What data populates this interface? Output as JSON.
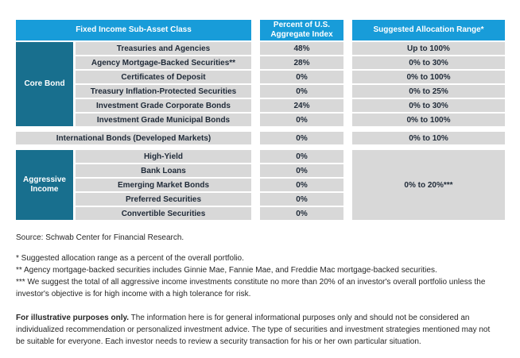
{
  "table": {
    "headers": {
      "col1": "Fixed Income Sub-Asset Class",
      "col2_line1": "Percent of U.S.",
      "col2_line2": "Aggregate Index",
      "col3": "Suggested Allocation Range*"
    },
    "sections": [
      {
        "stub": "Core Bond",
        "rows": [
          {
            "label": "Treasuries and Agencies",
            "percent": "48%",
            "range": "Up to 100%"
          },
          {
            "label": "Agency Mortgage-Backed Securities**",
            "percent": "28%",
            "range": "0% to 30%"
          },
          {
            "label": "Certificates of Deposit",
            "percent": "0%",
            "range": "0% to 100%"
          },
          {
            "label": "Treasury Inflation-Protected Securities",
            "percent": "0%",
            "range": "0% to 25%"
          },
          {
            "label": "Investment Grade Corporate Bonds",
            "percent": "24%",
            "range": "0% to 30%"
          },
          {
            "label": "Investment Grade Municipal Bonds",
            "percent": "0%",
            "range": "0% to 100%"
          }
        ]
      },
      {
        "rows": [
          {
            "label": "International Bonds (Developed Markets)",
            "percent": "0%",
            "range": "0% to 10%"
          }
        ]
      },
      {
        "stub": "Aggressive Income",
        "merged_range": "0% to 20%***",
        "rows": [
          {
            "label": "High-Yield",
            "percent": "0%"
          },
          {
            "label": "Bank Loans",
            "percent": "0%"
          },
          {
            "label": "Emerging Market Bonds",
            "percent": "0%"
          },
          {
            "label": "Preferred Securities",
            "percent": "0%"
          },
          {
            "label": "Convertible Securities",
            "percent": "0%"
          }
        ]
      }
    ]
  },
  "footnotes": {
    "source": "Source: Schwab Center for Financial Research.",
    "note1": "* Suggested allocation range as a percent of the overall portfolio.",
    "note2": "** Agency mortgage-backed securities includes Ginnie Mae, Fannie Mae, and Freddie Mac mortgage-backed securities.",
    "note3": "*** We suggest the total of all aggressive income investments constitute no more than 20% of an investor's overall portfolio unless the investor's objective is for high income with a high tolerance for risk.",
    "disclaimer_bold": "For illustrative purposes only.",
    "disclaimer_rest": " The information here is for general informational purposes only and should not be considered an individualized recommendation or personalized investment advice. The type of securities and investment strategies mentioned may not be suitable for everyone. Each investor needs to review a security transaction for his or her own particular situation."
  },
  "colors": {
    "header_blue": "#189CD9",
    "stub_teal": "#186F8E",
    "row_gray": "#D8D8D8",
    "table_text": "#1F2A38",
    "footnote_text": "#262626"
  }
}
